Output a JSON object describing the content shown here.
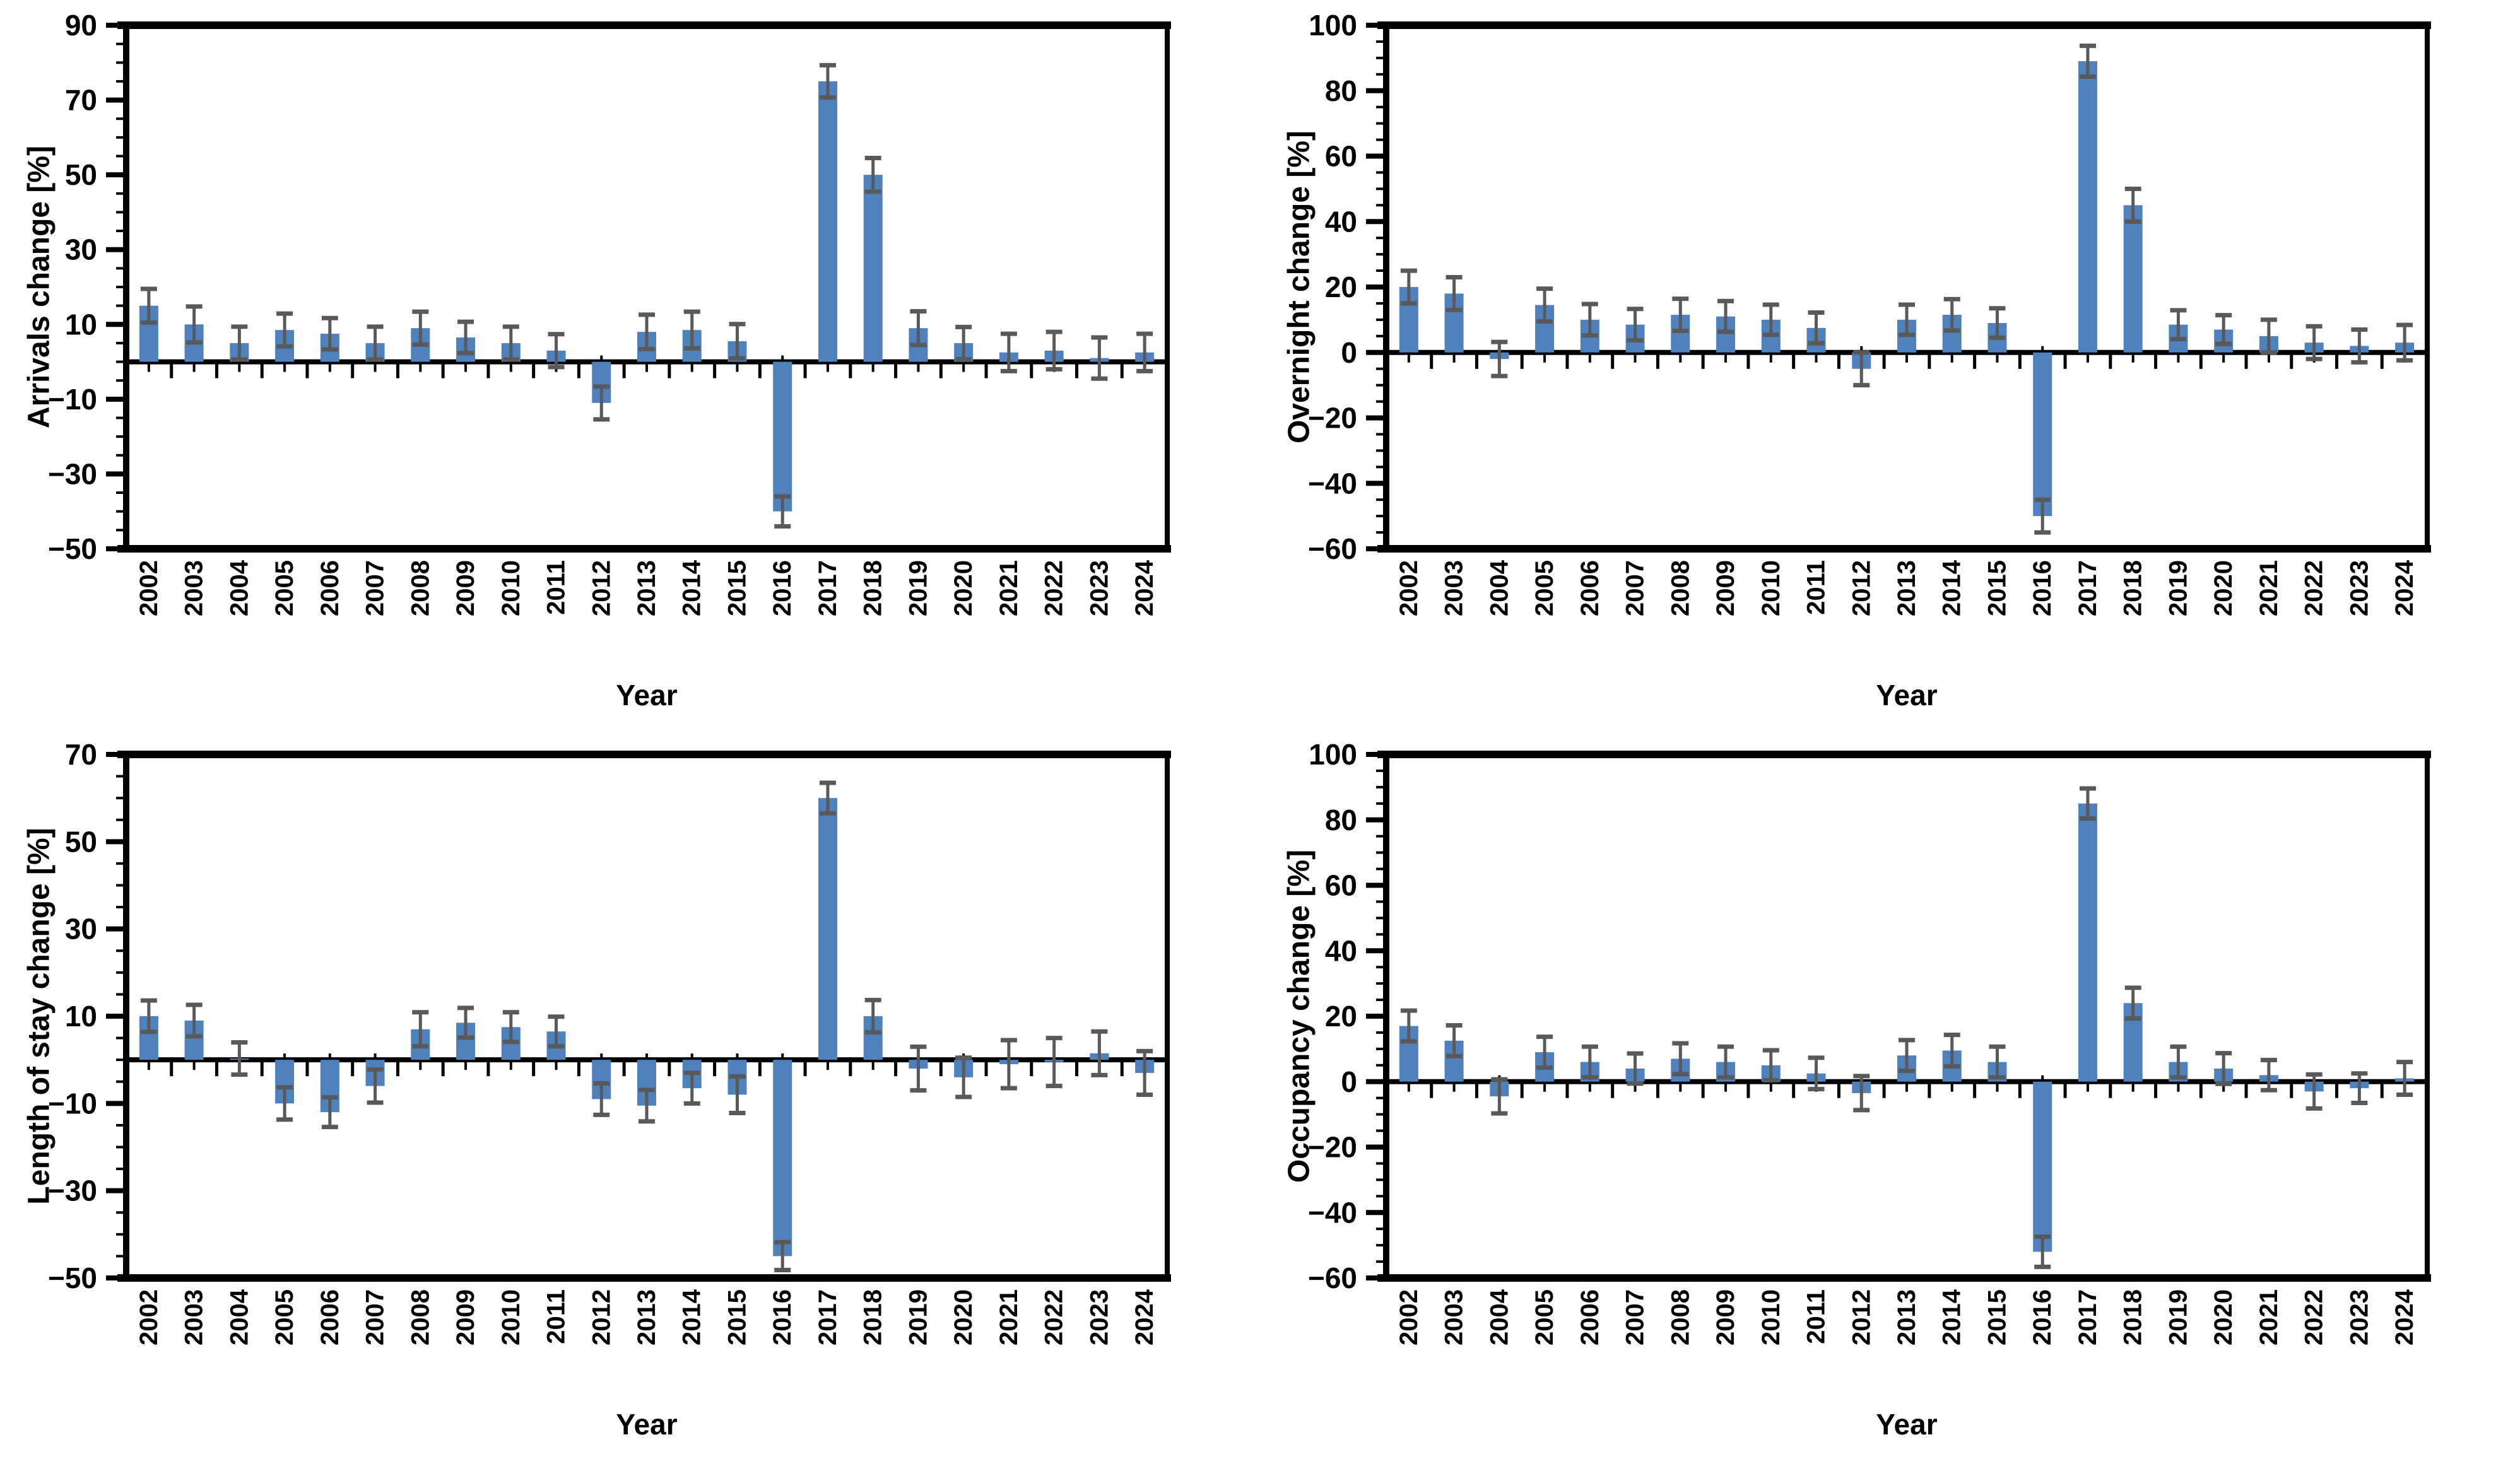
{
  "page": {
    "background_color": "#ffffff",
    "text_color": "#000000",
    "axis_color": "#000000"
  },
  "chart_data": [
    {
      "id": "arrivals-change",
      "type": "bar",
      "title": "",
      "ylabel": "Arrivals change [%]",
      "xlabel": "Year",
      "ylim": [
        -50,
        90
      ],
      "ytick_major": 20,
      "ytick_minor": 5,
      "grid": false,
      "legend_position": "none",
      "bar_color": "#4f81bd",
      "error_color": "#595959",
      "categories": [
        "2002",
        "2003",
        "2004",
        "2005",
        "2006",
        "2007",
        "2008",
        "2009",
        "2010",
        "2011",
        "2012",
        "2013",
        "2014",
        "2015",
        "2016",
        "2017",
        "2018",
        "2019",
        "2020",
        "2021",
        "2022",
        "2023",
        "2024"
      ],
      "values": [
        15,
        10,
        5,
        8.5,
        7.5,
        5,
        9,
        6.5,
        5,
        3,
        -11,
        8,
        8.5,
        5.5,
        -40,
        75,
        50,
        9,
        5,
        2.5,
        3,
        1,
        2.5
      ],
      "errors": [
        4.5,
        4.8,
        4.4,
        4.4,
        4.2,
        4.4,
        4.4,
        4.2,
        4.4,
        4.4,
        4.4,
        4.6,
        4.9,
        4.6,
        4.0,
        4.3,
        4.5,
        4.5,
        4.3,
        5.0,
        5.0,
        5.5,
        5.0
      ]
    },
    {
      "id": "overnight-change",
      "type": "bar",
      "title": "",
      "ylabel": "Overnight change [%]",
      "xlabel": "Year",
      "ylim": [
        -60,
        100
      ],
      "ytick_major": 20,
      "ytick_minor": 5,
      "grid": false,
      "legend_position": "none",
      "bar_color": "#4f81bd",
      "error_color": "#595959",
      "categories": [
        "2002",
        "2003",
        "2004",
        "2005",
        "2006",
        "2007",
        "2008",
        "2009",
        "2010",
        "2011",
        "2012",
        "2013",
        "2014",
        "2015",
        "2016",
        "2017",
        "2018",
        "2019",
        "2020",
        "2021",
        "2022",
        "2023",
        "2024"
      ],
      "values": [
        20,
        18,
        -2,
        14.5,
        10,
        8.5,
        11.5,
        11,
        10,
        7.5,
        -5,
        10,
        11.5,
        9,
        -50,
        89,
        45,
        8.5,
        7,
        5,
        3,
        2,
        3
      ],
      "errors": [
        5,
        5,
        5.2,
        5,
        4.8,
        4.8,
        4.9,
        4.7,
        4.6,
        4.7,
        5,
        4.6,
        4.8,
        4.5,
        5,
        4.7,
        5,
        4.4,
        4.4,
        5,
        5,
        5,
        5.4
      ]
    },
    {
      "id": "length-of-stay-change",
      "type": "bar",
      "title": "",
      "ylabel": "Length of stay change [%]",
      "xlabel": "Year",
      "ylim": [
        -50,
        70
      ],
      "ytick_major": 20,
      "ytick_minor": 5,
      "grid": false,
      "legend_position": "none",
      "bar_color": "#4f81bd",
      "error_color": "#595959",
      "categories": [
        "2002",
        "2003",
        "2004",
        "2005",
        "2006",
        "2007",
        "2008",
        "2009",
        "2010",
        "2011",
        "2012",
        "2013",
        "2014",
        "2015",
        "2016",
        "2017",
        "2018",
        "2019",
        "2020",
        "2021",
        "2022",
        "2023",
        "2024"
      ],
      "values": [
        10,
        9,
        0.3,
        -10,
        -12,
        -6,
        7,
        8.5,
        7.5,
        6.5,
        -9,
        -10.5,
        -6.5,
        -8,
        -45,
        60,
        10,
        -2,
        -4,
        -1,
        -0.5,
        1.5,
        -3
      ],
      "errors": [
        3.6,
        3.6,
        3.7,
        3.7,
        3.4,
        3.8,
        3.9,
        3.4,
        3.4,
        3.4,
        3.6,
        3.6,
        3.5,
        4.2,
        3.2,
        3.5,
        3.7,
        5,
        4.5,
        5.5,
        5.5,
        5,
        5
      ]
    },
    {
      "id": "occupancy-change",
      "type": "bar",
      "title": "",
      "ylabel": "Occupancy change [%]",
      "xlabel": "Year",
      "ylim": [
        -60,
        100
      ],
      "ytick_major": 20,
      "ytick_minor": 5,
      "grid": false,
      "legend_position": "none",
      "bar_color": "#4f81bd",
      "error_color": "#595959",
      "categories": [
        "2002",
        "2003",
        "2004",
        "2005",
        "2006",
        "2007",
        "2008",
        "2009",
        "2010",
        "2011",
        "2012",
        "2013",
        "2014",
        "2015",
        "2016",
        "2017",
        "2018",
        "2019",
        "2020",
        "2021",
        "2022",
        "2023",
        "2024"
      ],
      "values": [
        17,
        12.5,
        -4.5,
        9,
        6,
        4,
        7,
        6,
        5,
        2.5,
        -3.5,
        8,
        9.5,
        6,
        -52,
        85,
        24,
        6,
        4,
        2,
        -3,
        -2,
        1
      ],
      "errors": [
        4.7,
        4.7,
        5.2,
        4.7,
        4.7,
        4.6,
        4.7,
        4.7,
        4.6,
        4.8,
        5.2,
        4.7,
        4.8,
        4.7,
        4.6,
        4.6,
        4.7,
        4.7,
        4.7,
        4.6,
        5.2,
        4.5,
        5
      ]
    }
  ]
}
